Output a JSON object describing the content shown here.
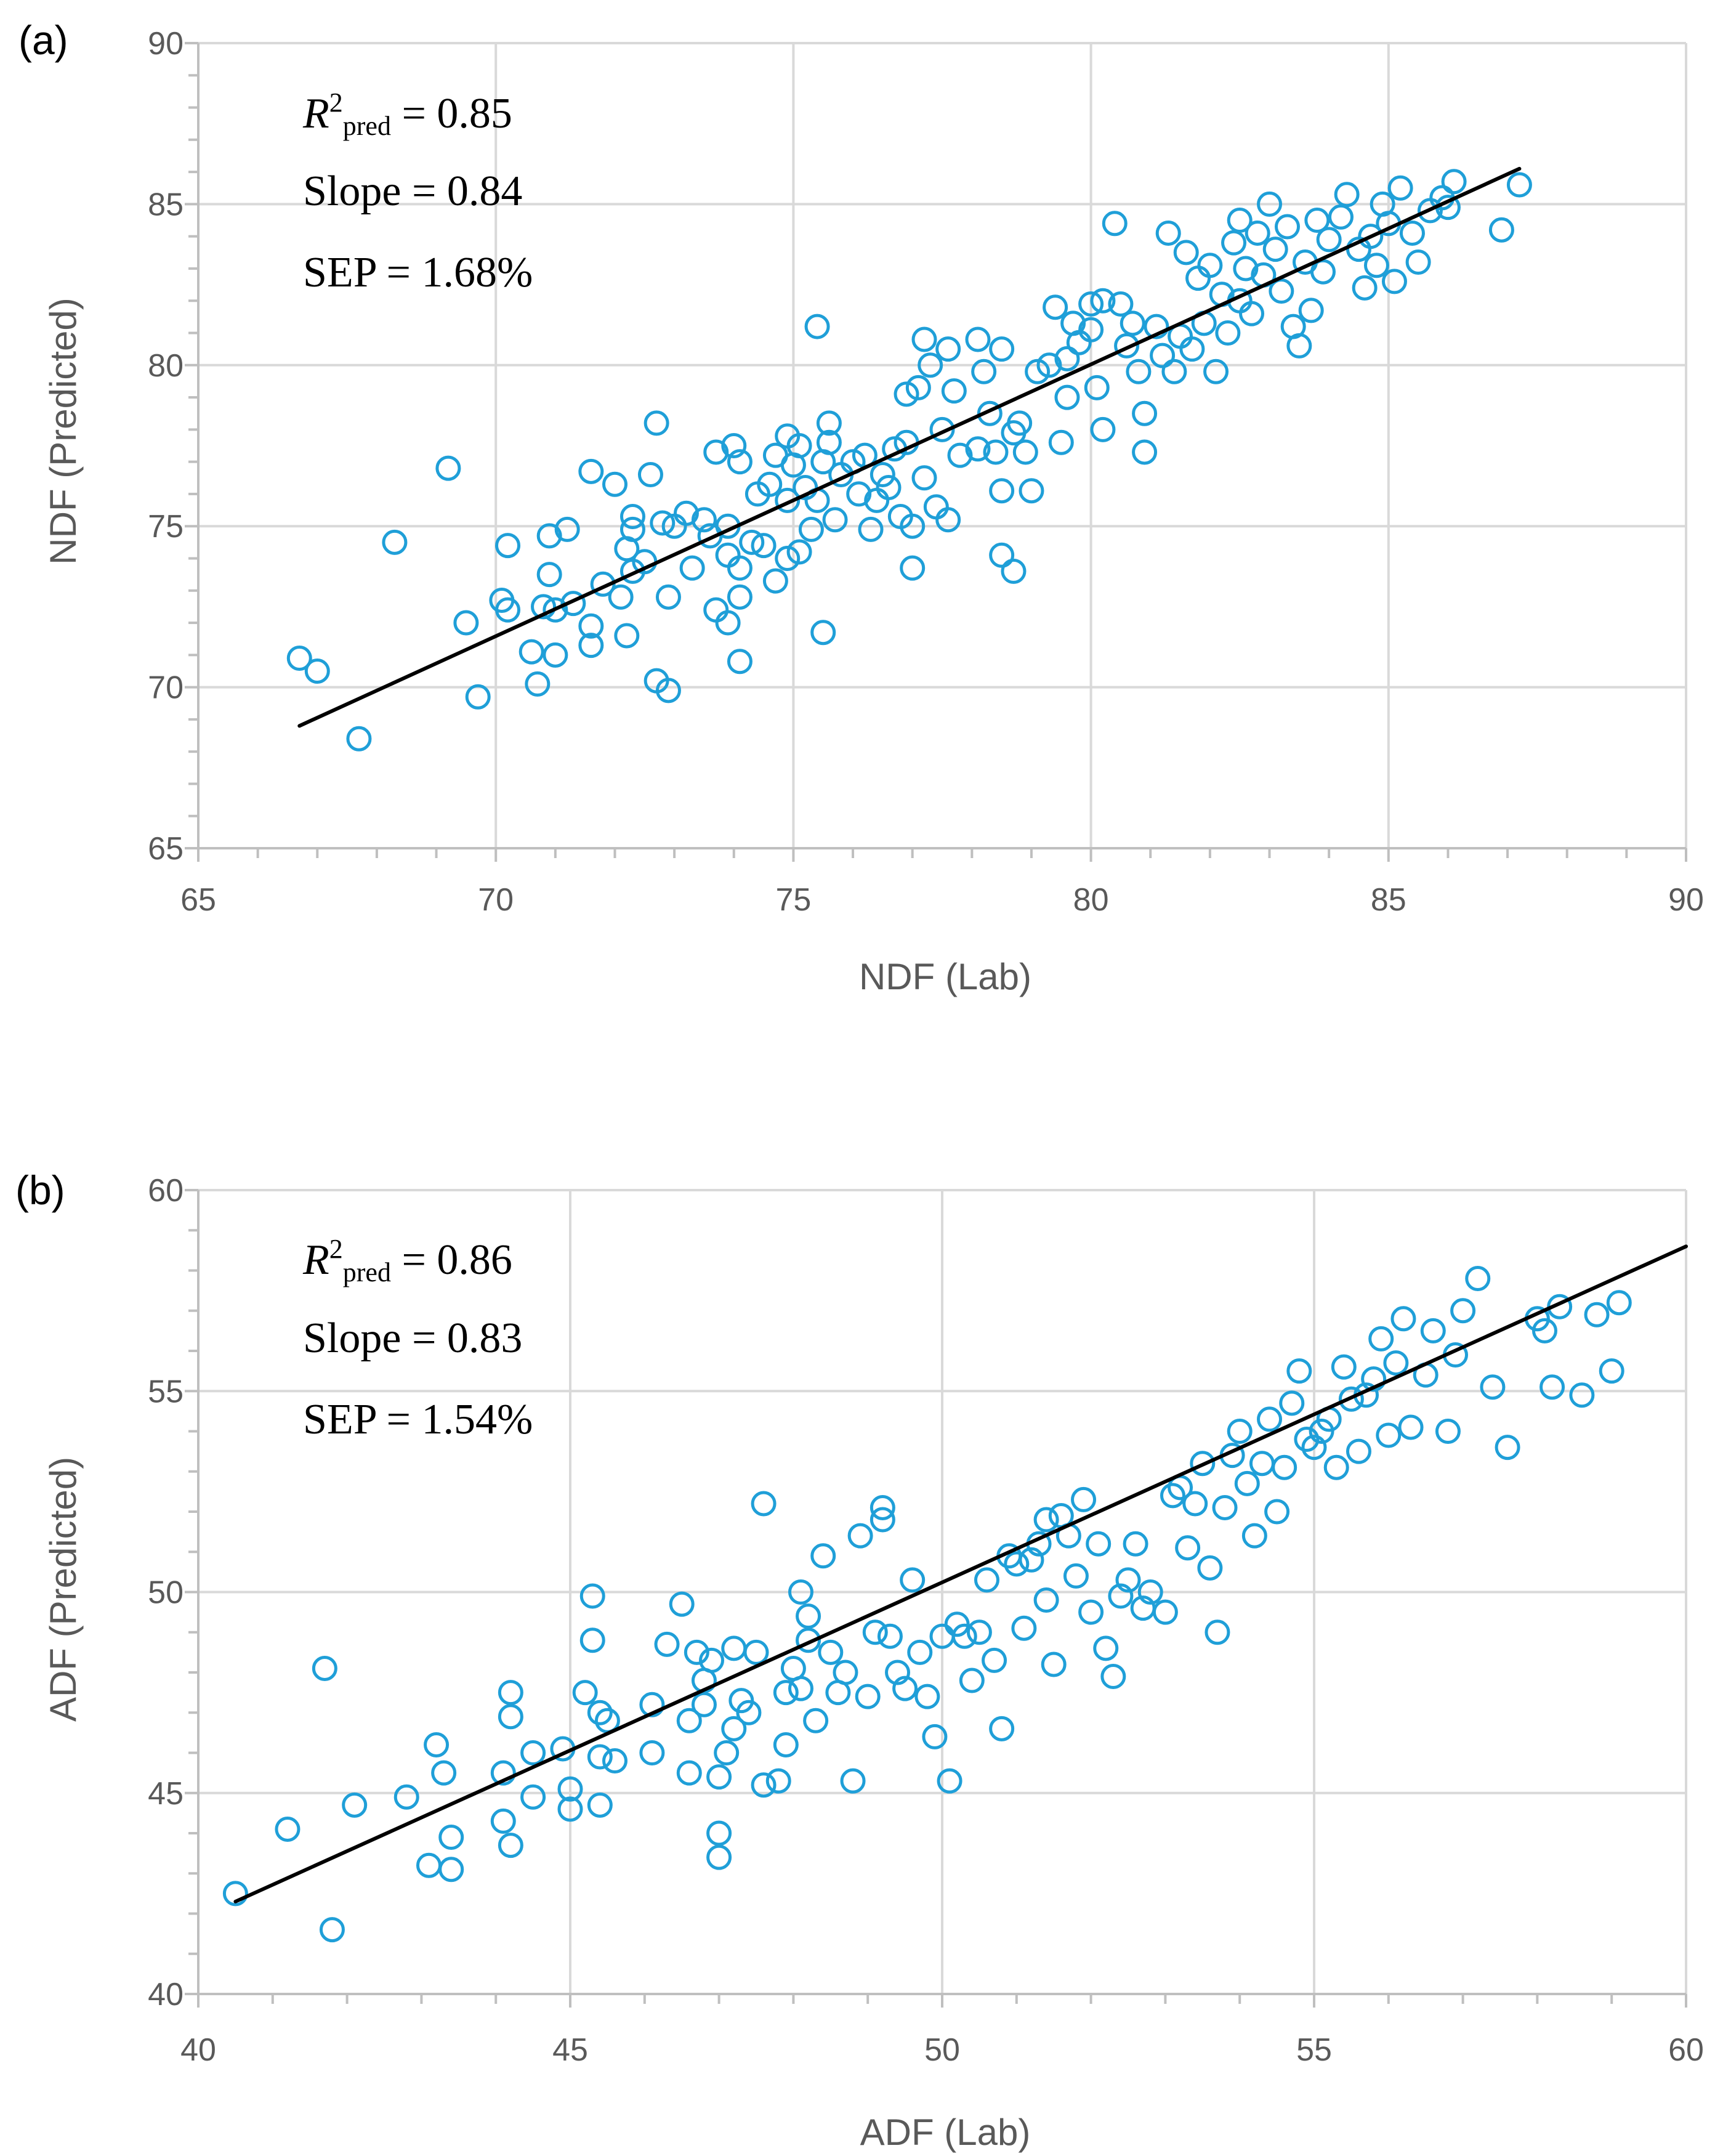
{
  "colors": {
    "marker": "#1f9fd8",
    "fit_line": "#000000",
    "grid": "#d9d9d9",
    "axis": "#bfbfbf",
    "text": "#595959"
  },
  "chart_data": [
    {
      "type": "scatter",
      "panel_label": "(a)",
      "xlabel": "NDF (Lab)",
      "ylabel": "NDF (Predicted)",
      "xlim": [
        65,
        90
      ],
      "ylim": [
        65,
        90
      ],
      "xticks": [
        "65",
        "70",
        "75",
        "80",
        "85",
        "90"
      ],
      "yticks": [
        "65",
        "70",
        "75",
        "80",
        "85",
        "90"
      ],
      "grid": true,
      "annotations": {
        "r2_symbol": "R",
        "r2_sup": "2",
        "r2_sub": "pred",
        "r2_value": " = 0.85",
        "slope": "Slope = 0.84",
        "sep": "SEP = 1.68%"
      },
      "fit_line": [
        [
          66.7,
          68.8
        ],
        [
          87.2,
          86.1
        ]
      ],
      "points": [
        [
          66.7,
          70.9
        ],
        [
          67.0,
          70.5
        ],
        [
          67.7,
          68.4
        ],
        [
          68.3,
          74.5
        ],
        [
          69.2,
          76.8
        ],
        [
          69.5,
          72.0
        ],
        [
          69.7,
          69.7
        ],
        [
          70.1,
          72.7
        ],
        [
          70.2,
          74.4
        ],
        [
          70.2,
          72.4
        ],
        [
          70.6,
          71.1
        ],
        [
          70.7,
          70.1
        ],
        [
          70.8,
          72.5
        ],
        [
          70.9,
          73.5
        ],
        [
          70.9,
          74.7
        ],
        [
          71.0,
          72.4
        ],
        [
          71.0,
          71.0
        ],
        [
          71.2,
          74.9
        ],
        [
          71.3,
          72.6
        ],
        [
          71.6,
          76.7
        ],
        [
          71.6,
          71.9
        ],
        [
          71.6,
          71.3
        ],
        [
          71.8,
          73.2
        ],
        [
          72.0,
          76.3
        ],
        [
          72.1,
          72.8
        ],
        [
          72.2,
          74.3
        ],
        [
          72.2,
          71.6
        ],
        [
          72.3,
          75.3
        ],
        [
          72.3,
          74.9
        ],
        [
          72.3,
          73.6
        ],
        [
          72.5,
          73.9
        ],
        [
          72.6,
          76.6
        ],
        [
          72.7,
          78.2
        ],
        [
          72.7,
          70.2
        ],
        [
          72.8,
          75.1
        ],
        [
          72.9,
          72.8
        ],
        [
          72.9,
          69.9
        ],
        [
          73.0,
          75.0
        ],
        [
          73.2,
          75.4
        ],
        [
          73.3,
          73.7
        ],
        [
          73.5,
          75.2
        ],
        [
          73.6,
          74.7
        ],
        [
          73.7,
          72.4
        ],
        [
          73.7,
          77.3
        ],
        [
          73.9,
          74.1
        ],
        [
          73.9,
          75.0
        ],
        [
          73.9,
          72.0
        ],
        [
          74.0,
          77.5
        ],
        [
          74.1,
          73.7
        ],
        [
          74.1,
          70.8
        ],
        [
          74.1,
          77.0
        ],
        [
          74.1,
          72.8
        ],
        [
          74.3,
          74.5
        ],
        [
          74.4,
          76.0
        ],
        [
          74.5,
          74.4
        ],
        [
          74.6,
          76.3
        ],
        [
          74.7,
          77.2
        ],
        [
          74.7,
          73.3
        ],
        [
          74.9,
          77.8
        ],
        [
          74.9,
          75.8
        ],
        [
          74.9,
          74.0
        ],
        [
          75.0,
          76.9
        ],
        [
          75.1,
          77.5
        ],
        [
          75.1,
          74.2
        ],
        [
          75.2,
          76.2
        ],
        [
          75.3,
          74.9
        ],
        [
          75.4,
          81.2
        ],
        [
          75.4,
          75.8
        ],
        [
          75.5,
          77.0
        ],
        [
          75.5,
          71.7
        ],
        [
          75.6,
          78.2
        ],
        [
          75.6,
          77.6
        ],
        [
          75.7,
          75.2
        ],
        [
          75.8,
          76.6
        ],
        [
          76.0,
          77.0
        ],
        [
          76.1,
          76.0
        ],
        [
          76.2,
          77.2
        ],
        [
          76.3,
          74.9
        ],
        [
          76.4,
          75.8
        ],
        [
          76.5,
          76.6
        ],
        [
          76.6,
          76.2
        ],
        [
          76.7,
          77.4
        ],
        [
          76.8,
          75.3
        ],
        [
          76.9,
          79.1
        ],
        [
          76.9,
          77.6
        ],
        [
          77.0,
          73.7
        ],
        [
          77.0,
          75.0
        ],
        [
          77.1,
          79.3
        ],
        [
          77.2,
          80.8
        ],
        [
          77.2,
          76.5
        ],
        [
          77.3,
          80.0
        ],
        [
          77.4,
          75.6
        ],
        [
          77.5,
          78.0
        ],
        [
          77.6,
          75.2
        ],
        [
          77.6,
          80.5
        ],
        [
          77.7,
          79.2
        ],
        [
          77.8,
          77.2
        ],
        [
          78.1,
          80.8
        ],
        [
          78.1,
          77.4
        ],
        [
          78.2,
          79.8
        ],
        [
          78.3,
          78.5
        ],
        [
          78.4,
          77.3
        ],
        [
          78.5,
          80.5
        ],
        [
          78.5,
          76.1
        ],
        [
          78.5,
          74.1
        ],
        [
          78.7,
          73.6
        ],
        [
          78.7,
          77.9
        ],
        [
          78.8,
          78.2
        ],
        [
          78.9,
          77.3
        ],
        [
          79.0,
          76.1
        ],
        [
          79.1,
          79.8
        ],
        [
          79.3,
          80.0
        ],
        [
          79.4,
          81.8
        ],
        [
          79.5,
          77.6
        ],
        [
          79.6,
          80.2
        ],
        [
          79.6,
          79.0
        ],
        [
          79.7,
          81.3
        ],
        [
          79.8,
          80.7
        ],
        [
          80.0,
          81.9
        ],
        [
          80.0,
          81.1
        ],
        [
          80.1,
          79.3
        ],
        [
          80.2,
          78.0
        ],
        [
          80.2,
          82.0
        ],
        [
          80.4,
          84.4
        ],
        [
          80.5,
          81.9
        ],
        [
          80.6,
          80.6
        ],
        [
          80.7,
          81.3
        ],
        [
          80.8,
          79.8
        ],
        [
          80.9,
          77.3
        ],
        [
          80.9,
          78.5
        ],
        [
          81.1,
          81.2
        ],
        [
          81.2,
          80.3
        ],
        [
          81.3,
          84.1
        ],
        [
          81.4,
          79.8
        ],
        [
          81.5,
          80.9
        ],
        [
          81.6,
          83.5
        ],
        [
          81.7,
          80.5
        ],
        [
          81.8,
          82.7
        ],
        [
          81.9,
          81.3
        ],
        [
          82.0,
          83.1
        ],
        [
          82.1,
          79.8
        ],
        [
          82.2,
          82.2
        ],
        [
          82.3,
          81.0
        ],
        [
          82.4,
          83.8
        ],
        [
          82.5,
          84.5
        ],
        [
          82.5,
          82.0
        ],
        [
          82.6,
          83.0
        ],
        [
          82.7,
          81.6
        ],
        [
          82.8,
          84.1
        ],
        [
          82.9,
          82.8
        ],
        [
          83.0,
          85.0
        ],
        [
          83.1,
          83.6
        ],
        [
          83.2,
          82.3
        ],
        [
          83.3,
          84.3
        ],
        [
          83.4,
          81.2
        ],
        [
          83.5,
          80.6
        ],
        [
          83.6,
          83.2
        ],
        [
          83.7,
          81.7
        ],
        [
          83.8,
          84.5
        ],
        [
          83.9,
          82.9
        ],
        [
          84.0,
          83.9
        ],
        [
          84.2,
          84.6
        ],
        [
          84.3,
          85.3
        ],
        [
          84.5,
          83.6
        ],
        [
          84.6,
          82.4
        ],
        [
          84.7,
          84.0
        ],
        [
          84.8,
          83.1
        ],
        [
          84.9,
          85.0
        ],
        [
          85.0,
          84.4
        ],
        [
          85.1,
          82.6
        ],
        [
          85.2,
          85.5
        ],
        [
          85.4,
          84.1
        ],
        [
          85.5,
          83.2
        ],
        [
          85.7,
          84.8
        ],
        [
          85.9,
          85.2
        ],
        [
          86.0,
          84.9
        ],
        [
          86.1,
          85.7
        ],
        [
          86.9,
          84.2
        ],
        [
          87.2,
          85.6
        ]
      ]
    },
    {
      "type": "scatter",
      "panel_label": "(b)",
      "xlabel": "ADF (Lab)",
      "ylabel": "ADF (Predicted)",
      "xlim": [
        40,
        60
      ],
      "ylim": [
        40,
        60
      ],
      "xticks": [
        "40",
        "45",
        "50",
        "55",
        "60"
      ],
      "yticks": [
        "40",
        "45",
        "50",
        "55",
        "60"
      ],
      "grid": true,
      "annotations": {
        "r2_symbol": "R",
        "r2_sup": "2",
        "r2_sub": "pred",
        "r2_value": " = 0.86",
        "slope": "Slope = 0.83",
        "sep": "SEP = 1.54%"
      },
      "fit_line": [
        [
          40.5,
          42.3
        ],
        [
          60.0,
          58.6
        ]
      ],
      "points": [
        [
          40.5,
          42.5
        ],
        [
          41.2,
          44.1
        ],
        [
          41.7,
          48.1
        ],
        [
          41.8,
          41.6
        ],
        [
          42.1,
          44.7
        ],
        [
          42.8,
          44.9
        ],
        [
          43.1,
          43.2
        ],
        [
          43.2,
          46.2
        ],
        [
          43.3,
          45.5
        ],
        [
          43.4,
          43.1
        ],
        [
          43.4,
          43.9
        ],
        [
          44.1,
          44.3
        ],
        [
          44.1,
          45.5
        ],
        [
          44.2,
          47.5
        ],
        [
          44.2,
          46.9
        ],
        [
          44.2,
          43.7
        ],
        [
          44.5,
          44.9
        ],
        [
          44.5,
          46.0
        ],
        [
          44.9,
          46.1
        ],
        [
          45.0,
          45.1
        ],
        [
          45.0,
          44.6
        ],
        [
          45.2,
          47.5
        ],
        [
          45.3,
          49.9
        ],
        [
          45.3,
          48.8
        ],
        [
          45.4,
          45.9
        ],
        [
          45.4,
          47.0
        ],
        [
          45.4,
          44.7
        ],
        [
          45.5,
          46.8
        ],
        [
          45.6,
          45.8
        ],
        [
          46.1,
          47.2
        ],
        [
          46.1,
          46.0
        ],
        [
          46.3,
          48.7
        ],
        [
          46.5,
          49.7
        ],
        [
          46.6,
          46.8
        ],
        [
          46.6,
          45.5
        ],
        [
          46.7,
          48.5
        ],
        [
          46.8,
          47.8
        ],
        [
          46.8,
          47.2
        ],
        [
          46.9,
          48.3
        ],
        [
          47.0,
          44.0
        ],
        [
          47.0,
          43.4
        ],
        [
          47.0,
          45.4
        ],
        [
          47.1,
          46.0
        ],
        [
          47.2,
          48.6
        ],
        [
          47.2,
          46.6
        ],
        [
          47.3,
          47.3
        ],
        [
          47.4,
          47.0
        ],
        [
          47.5,
          48.5
        ],
        [
          47.6,
          52.2
        ],
        [
          47.6,
          45.2
        ],
        [
          47.8,
          45.3
        ],
        [
          47.9,
          47.5
        ],
        [
          47.9,
          46.2
        ],
        [
          48.0,
          48.1
        ],
        [
          48.1,
          50.0
        ],
        [
          48.1,
          47.6
        ],
        [
          48.2,
          49.4
        ],
        [
          48.2,
          48.8
        ],
        [
          48.3,
          46.8
        ],
        [
          48.4,
          50.9
        ],
        [
          48.5,
          48.5
        ],
        [
          48.6,
          47.5
        ],
        [
          48.7,
          48.0
        ],
        [
          48.8,
          45.3
        ],
        [
          48.9,
          51.4
        ],
        [
          49.0,
          47.4
        ],
        [
          49.1,
          49.0
        ],
        [
          49.2,
          51.8
        ],
        [
          49.2,
          52.1
        ],
        [
          49.3,
          48.9
        ],
        [
          49.4,
          48.0
        ],
        [
          49.5,
          47.6
        ],
        [
          49.6,
          50.3
        ],
        [
          49.7,
          48.5
        ],
        [
          49.8,
          47.4
        ],
        [
          49.9,
          46.4
        ],
        [
          50.0,
          48.9
        ],
        [
          50.1,
          45.3
        ],
        [
          50.2,
          49.2
        ],
        [
          50.3,
          48.9
        ],
        [
          50.4,
          47.8
        ],
        [
          50.5,
          49.0
        ],
        [
          50.6,
          50.3
        ],
        [
          50.7,
          48.3
        ],
        [
          50.8,
          46.6
        ],
        [
          50.9,
          50.9
        ],
        [
          51.0,
          50.7
        ],
        [
          51.1,
          49.1
        ],
        [
          51.2,
          50.8
        ],
        [
          51.3,
          51.2
        ],
        [
          51.4,
          51.8
        ],
        [
          51.4,
          49.8
        ],
        [
          51.5,
          48.2
        ],
        [
          51.6,
          51.9
        ],
        [
          51.7,
          51.4
        ],
        [
          51.8,
          50.4
        ],
        [
          51.9,
          52.3
        ],
        [
          52.0,
          49.5
        ],
        [
          52.1,
          51.2
        ],
        [
          52.2,
          48.6
        ],
        [
          52.3,
          47.9
        ],
        [
          52.4,
          49.9
        ],
        [
          52.5,
          50.3
        ],
        [
          52.6,
          51.2
        ],
        [
          52.7,
          49.6
        ],
        [
          52.8,
          50.0
        ],
        [
          53.0,
          49.5
        ],
        [
          53.1,
          52.4
        ],
        [
          53.2,
          52.6
        ],
        [
          53.3,
          51.1
        ],
        [
          53.4,
          52.2
        ],
        [
          53.5,
          53.2
        ],
        [
          53.6,
          50.6
        ],
        [
          53.7,
          49.0
        ],
        [
          53.8,
          52.1
        ],
        [
          53.9,
          53.4
        ],
        [
          54.0,
          54.0
        ],
        [
          54.1,
          52.7
        ],
        [
          54.2,
          51.4
        ],
        [
          54.3,
          53.2
        ],
        [
          54.4,
          54.3
        ],
        [
          54.5,
          52.0
        ],
        [
          54.6,
          53.1
        ],
        [
          54.7,
          54.7
        ],
        [
          54.8,
          55.5
        ],
        [
          54.9,
          53.8
        ],
        [
          55.0,
          53.6
        ],
        [
          55.1,
          54.0
        ],
        [
          55.2,
          54.3
        ],
        [
          55.3,
          53.1
        ],
        [
          55.4,
          55.6
        ],
        [
          55.5,
          54.8
        ],
        [
          55.6,
          53.5
        ],
        [
          55.7,
          54.9
        ],
        [
          55.8,
          55.3
        ],
        [
          55.9,
          56.3
        ],
        [
          56.0,
          53.9
        ],
        [
          56.1,
          55.7
        ],
        [
          56.2,
          56.8
        ],
        [
          56.3,
          54.1
        ],
        [
          56.5,
          55.4
        ],
        [
          56.6,
          56.5
        ],
        [
          56.8,
          54.0
        ],
        [
          56.9,
          55.9
        ],
        [
          57.0,
          57.0
        ],
        [
          57.2,
          57.8
        ],
        [
          57.4,
          55.1
        ],
        [
          57.6,
          53.6
        ],
        [
          58.0,
          56.8
        ],
        [
          58.1,
          56.5
        ],
        [
          58.2,
          55.1
        ],
        [
          58.3,
          57.1
        ],
        [
          58.6,
          54.9
        ],
        [
          58.8,
          56.9
        ],
        [
          59.0,
          55.5
        ],
        [
          59.1,
          57.2
        ]
      ]
    }
  ]
}
